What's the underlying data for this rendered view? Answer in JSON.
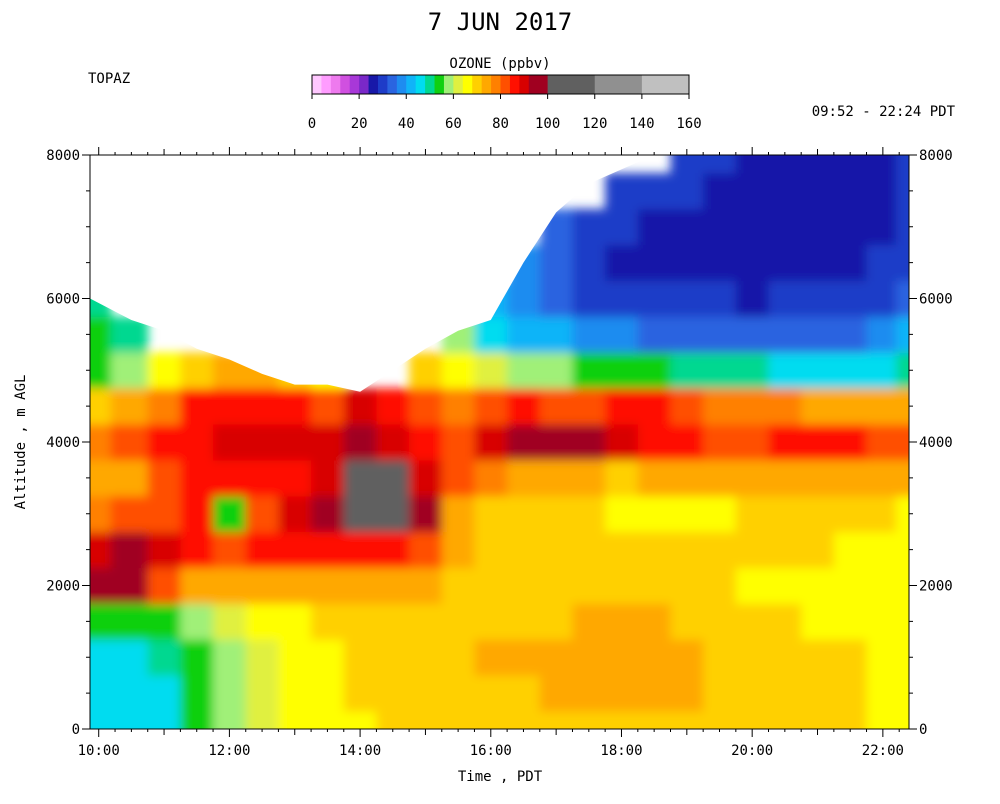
{
  "chart_data": {
    "type": "heatmap",
    "title": "7 JUN 2017",
    "station": "TOPAZ",
    "time_range_label": "09:52 - 22:24 PDT",
    "xlabel": "Time , PDT",
    "ylabel": "Altitude , m AGL",
    "xlim": [
      "09:52",
      "22:24"
    ],
    "ylim": [
      0,
      8000
    ],
    "x_tick_labels": [
      "10:00",
      "12:00",
      "14:00",
      "16:00",
      "18:00",
      "20:00",
      "22:00"
    ],
    "y_tick_labels": [
      "0",
      "2000",
      "4000",
      "6000",
      "8000"
    ],
    "colorbar": {
      "title": "OZONE (ppbv)",
      "tick_labels": [
        "0",
        "20",
        "40",
        "60",
        "80",
        "100",
        "120",
        "140",
        "160"
      ],
      "range": [
        0,
        160
      ],
      "bins": [
        {
          "from": 0,
          "to": 4,
          "color": "#ffc8ff"
        },
        {
          "from": 4,
          "to": 8,
          "color": "#ff9cff"
        },
        {
          "from": 8,
          "to": 12,
          "color": "#ee7aee"
        },
        {
          "from": 12,
          "to": 16,
          "color": "#d050e0"
        },
        {
          "from": 16,
          "to": 20,
          "color": "#a838d8"
        },
        {
          "from": 20,
          "to": 24,
          "color": "#7a28c8"
        },
        {
          "from": 24,
          "to": 28,
          "color": "#1818a8"
        },
        {
          "from": 28,
          "to": 32,
          "color": "#1e3cc8"
        },
        {
          "from": 32,
          "to": 36,
          "color": "#2a64e0"
        },
        {
          "from": 36,
          "to": 40,
          "color": "#1e8cf0"
        },
        {
          "from": 40,
          "to": 44,
          "color": "#10b4f8"
        },
        {
          "from": 44,
          "to": 48,
          "color": "#00dcf0"
        },
        {
          "from": 48,
          "to": 52,
          "color": "#00d890"
        },
        {
          "from": 52,
          "to": 56,
          "color": "#10d010"
        },
        {
          "from": 56,
          "to": 60,
          "color": "#a0f078"
        },
        {
          "from": 60,
          "to": 64,
          "color": "#e0f040"
        },
        {
          "from": 64,
          "to": 68,
          "color": "#ffff00"
        },
        {
          "from": 68,
          "to": 72,
          "color": "#ffd000"
        },
        {
          "from": 72,
          "to": 76,
          "color": "#ffa800"
        },
        {
          "from": 76,
          "to": 80,
          "color": "#ff8000"
        },
        {
          "from": 80,
          "to": 84,
          "color": "#ff5000"
        },
        {
          "from": 84,
          "to": 88,
          "color": "#ff1000"
        },
        {
          "from": 88,
          "to": 92,
          "color": "#d80000"
        },
        {
          "from": 92,
          "to": 100,
          "color": "#a00020"
        },
        {
          "from": 100,
          "to": 120,
          "color": "#606060"
        },
        {
          "from": 120,
          "to": 140,
          "color": "#909090"
        },
        {
          "from": 140,
          "to": 160,
          "color": "#c0c0c0"
        }
      ]
    },
    "times": [
      "09:52",
      "10:30",
      "11:00",
      "11:30",
      "12:00",
      "12:30",
      "13:00",
      "13:30",
      "14:00",
      "14:30",
      "15:00",
      "15:30",
      "16:00",
      "16:30",
      "17:00",
      "17:30",
      "18:00",
      "18:30",
      "19:00",
      "19:30",
      "20:00",
      "20:30",
      "21:00",
      "21:30",
      "22:00",
      "22:24"
    ],
    "altitudes": [
      0,
      500,
      1000,
      1500,
      2000,
      2500,
      3000,
      3500,
      4000,
      4500,
      5000,
      5500,
      6000,
      6500,
      7000,
      7500,
      8000
    ],
    "data_top_m": [
      6000,
      5700,
      5550,
      5300,
      5150,
      4950,
      4800,
      4800,
      4700,
      5000,
      5300,
      5550,
      5700,
      6500,
      7200,
      7600,
      7800,
      8000,
      8000,
      8000,
      8000,
      8000,
      8000,
      8000,
      8000,
      8000
    ],
    "ozone_ppbv": [
      [
        46,
        46,
        47,
        54,
        58,
        60,
        64,
        66,
        67,
        68,
        70,
        70,
        70,
        70,
        69,
        70,
        71,
        70,
        69,
        69,
        69,
        69,
        68,
        68,
        66,
        64
      ],
      [
        45,
        45,
        47,
        53,
        58,
        61,
        64,
        66,
        68,
        69,
        70,
        71,
        71,
        71,
        72,
        73,
        74,
        73,
        72,
        71,
        70,
        69,
        68,
        68,
        67,
        66
      ],
      [
        45,
        46,
        50,
        54,
        58,
        62,
        65,
        67,
        69,
        70,
        70,
        71,
        72,
        72,
        73,
        73,
        74,
        74,
        72,
        71,
        70,
        69,
        69,
        68,
        67,
        67
      ],
      [
        52,
        52,
        54,
        56,
        60,
        64,
        66,
        68,
        70,
        70,
        71,
        71,
        71,
        71,
        71,
        72,
        72,
        72,
        71,
        70,
        69,
        68,
        67,
        67,
        66,
        66
      ],
      [
        93,
        95,
        82,
        73,
        72,
        74,
        73,
        74,
        75,
        74,
        73,
        71,
        70,
        70,
        70,
        70,
        69,
        69,
        68,
        68,
        67,
        67,
        67,
        66,
        66,
        66
      ],
      [
        90,
        93,
        91,
        86,
        83,
        86,
        84,
        85,
        86,
        84,
        82,
        74,
        71,
        71,
        71,
        71,
        70,
        70,
        70,
        69,
        68,
        68,
        68,
        67,
        67,
        66
      ],
      [
        76,
        80,
        83,
        86,
        52,
        82,
        88,
        92,
        104,
        103,
        93,
        75,
        71,
        70,
        69,
        68,
        66,
        66,
        67,
        67,
        68,
        68,
        68,
        68,
        68,
        67
      ],
      [
        72,
        75,
        80,
        85,
        84,
        85,
        87,
        90,
        102,
        100,
        90,
        80,
        76,
        74,
        72,
        72,
        71,
        72,
        72,
        72,
        73,
        72,
        73,
        73,
        74,
        74
      ],
      [
        76,
        80,
        84,
        86,
        88,
        90,
        89,
        90,
        92,
        88,
        84,
        82,
        88,
        92,
        94,
        92,
        88,
        86,
        84,
        82,
        83,
        84,
        85,
        84,
        82,
        80
      ],
      [
        70,
        72,
        78,
        84,
        85,
        86,
        84,
        82,
        90,
        84,
        80,
        78,
        80,
        84,
        82,
        80,
        84,
        84,
        80,
        78,
        78,
        76,
        75,
        74,
        74,
        72
      ],
      [
        55,
        58,
        65,
        70,
        72,
        74,
        70,
        66,
        0,
        0,
        70,
        64,
        60,
        58,
        56,
        55,
        54,
        52,
        50,
        48,
        48,
        47,
        46,
        46,
        46,
        48
      ],
      [
        52,
        50,
        0,
        0,
        0,
        0,
        0,
        0,
        0,
        0,
        0,
        56,
        45,
        42,
        40,
        38,
        36,
        34,
        34,
        33,
        32,
        33,
        34,
        34,
        36,
        40
      ],
      [
        50,
        0,
        0,
        0,
        0,
        0,
        0,
        0,
        0,
        0,
        0,
        0,
        42,
        36,
        33,
        30,
        29,
        28,
        28,
        28,
        27,
        28,
        28,
        28,
        30,
        32
      ],
      [
        0,
        0,
        0,
        0,
        0,
        0,
        0,
        0,
        0,
        0,
        0,
        0,
        0,
        36,
        32,
        28,
        27,
        26,
        26,
        27,
        26,
        27,
        26,
        26,
        28,
        30
      ],
      [
        0,
        0,
        0,
        0,
        0,
        0,
        0,
        0,
        0,
        0,
        0,
        0,
        0,
        0,
        34,
        29,
        28,
        27,
        26,
        25,
        26,
        26,
        25,
        25,
        27,
        30
      ],
      [
        0,
        0,
        0,
        0,
        0,
        0,
        0,
        0,
        0,
        0,
        0,
        0,
        0,
        0,
        0,
        0,
        30,
        29,
        28,
        26,
        24,
        25,
        25,
        24,
        26,
        30
      ],
      [
        0,
        0,
        0,
        0,
        0,
        0,
        0,
        0,
        0,
        0,
        0,
        0,
        0,
        0,
        0,
        0,
        0,
        0,
        30,
        28,
        26,
        24,
        26,
        25,
        27,
        30
      ]
    ],
    "grid": false,
    "legend": "top colorbar"
  }
}
